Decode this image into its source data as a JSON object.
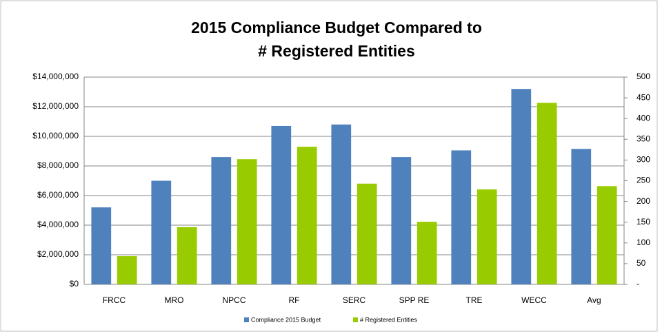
{
  "chart_data": {
    "type": "bar",
    "title": "2015 Compliance Budget Compared to",
    "subtitle": "# Registered Entities",
    "categories": [
      "FRCC",
      "MRO",
      "NPCC",
      "RF",
      "SERC",
      "SPP RE",
      "TRE",
      "WECC",
      "Avg"
    ],
    "series": [
      {
        "name": "Compliance 2015 Budget",
        "color": "#4f81bd",
        "values": [
          5200000,
          7000000,
          8600000,
          10700000,
          10800000,
          8600000,
          9050000,
          13200000,
          9150000
        ]
      },
      {
        "name": "# Registered Entities",
        "color": "#99cc00",
        "axis": "y2",
        "values": [
          68,
          138,
          302,
          332,
          243,
          151,
          229,
          438,
          237
        ]
      }
    ],
    "ylim": [
      0,
      14000000
    ],
    "yticks": [
      {
        "value": 0,
        "label": "$0"
      },
      {
        "value": 2000000,
        "label": "$2,000,000"
      },
      {
        "value": 4000000,
        "label": "$4,000,000"
      },
      {
        "value": 6000000,
        "label": "$6,000,000"
      },
      {
        "value": 8000000,
        "label": "$8,000,000"
      },
      {
        "value": 10000000,
        "label": "$10,000,000"
      },
      {
        "value": 12000000,
        "label": "$12,000,000"
      },
      {
        "value": 14000000,
        "label": "$14,000,000"
      }
    ],
    "y2lim": [
      0,
      500
    ],
    "y2ticks": [
      {
        "value": 0,
        "label": "-"
      },
      50,
      100,
      150,
      200,
      250,
      300,
      350,
      400,
      450,
      500
    ],
    "grid": true,
    "legend": "bottom"
  }
}
